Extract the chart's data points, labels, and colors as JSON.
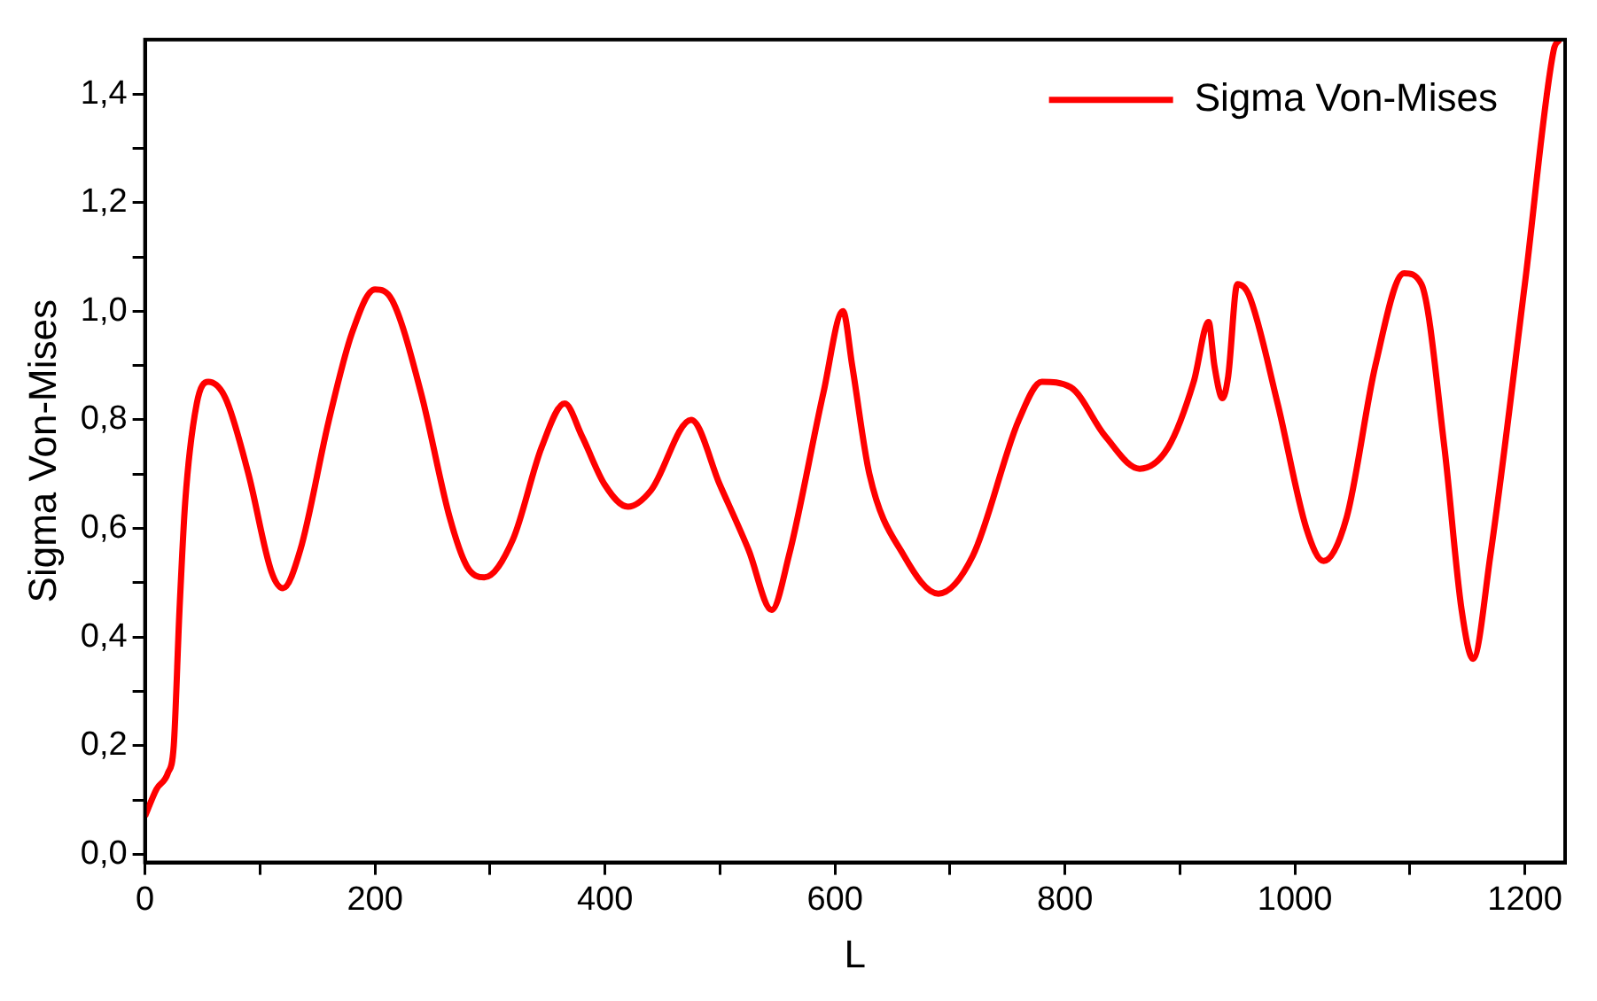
{
  "chart_data": {
    "type": "line",
    "xlabel": "L",
    "ylabel": "Sigma Von-Mises",
    "xlim": [
      0,
      1235
    ],
    "ylim": [
      -0.015,
      1.5
    ],
    "xticks": [
      0,
      {
        "value": 100,
        "label": null
      },
      200,
      {
        "value": 300,
        "label": null
      },
      400,
      {
        "value": 500,
        "label": null
      },
      600,
      {
        "value": 700,
        "label": null
      },
      800,
      {
        "value": 900,
        "label": null
      },
      1000,
      {
        "value": 1100,
        "label": null
      },
      1200
    ],
    "yticks": [
      {
        "value": 0,
        "label": "0,0"
      },
      {
        "value": 0.1,
        "label": null
      },
      {
        "value": 0.2,
        "label": "0,2"
      },
      {
        "value": 0.3,
        "label": null
      },
      {
        "value": 0.4,
        "label": "0,4"
      },
      {
        "value": 0.5,
        "label": null
      },
      {
        "value": 0.6,
        "label": "0,6"
      },
      {
        "value": 0.7,
        "label": null
      },
      {
        "value": 0.8,
        "label": "0,8"
      },
      {
        "value": 0.9,
        "label": null
      },
      {
        "value": 1.0,
        "label": "1,0"
      },
      {
        "value": 1.1,
        "label": null
      },
      {
        "value": 1.2,
        "label": "1,2"
      },
      {
        "value": 1.3,
        "label": null
      },
      {
        "value": 1.4,
        "label": "1,4"
      }
    ],
    "grid": false,
    "legend": "top right",
    "marker": "none",
    "line_style": "solid",
    "series": [
      {
        "name": "Sigma Von-Mises",
        "color": "#ff0000",
        "x": [
          0,
          10,
          20,
          25,
          30,
          35,
          45,
          55,
          70,
          90,
          110,
          120,
          135,
          160,
          180,
          200,
          215,
          240,
          265,
          280,
          295,
          320,
          345,
          365,
          380,
          400,
          420,
          440,
          475,
          500,
          525,
          545,
          560,
          590,
          607,
          615,
          630,
          660,
          690,
          720,
          760,
          780,
          805,
          835,
          865,
          890,
          912,
          925,
          930,
          937,
          942,
          950,
          960,
          985,
          1010,
          1025,
          1045,
          1070,
          1095,
          1110,
          1130,
          1145,
          1155,
          1170,
          1200,
          1225,
          1230
        ],
        "values": [
          0.07,
          0.12,
          0.15,
          0.2,
          0.45,
          0.65,
          0.83,
          0.87,
          0.84,
          0.7,
          0.52,
          0.49,
          0.56,
          0.8,
          0.96,
          1.04,
          1.02,
          0.85,
          0.62,
          0.53,
          0.51,
          0.58,
          0.75,
          0.83,
          0.77,
          0.68,
          0.64,
          0.67,
          0.8,
          0.68,
          0.56,
          0.45,
          0.55,
          0.85,
          1.0,
          0.9,
          0.7,
          0.55,
          0.48,
          0.55,
          0.8,
          0.87,
          0.86,
          0.77,
          0.71,
          0.75,
          0.87,
          0.98,
          0.9,
          0.84,
          0.88,
          1.05,
          1.03,
          0.83,
          0.6,
          0.54,
          0.62,
          0.9,
          1.07,
          1.05,
          0.75,
          0.45,
          0.36,
          0.55,
          1.05,
          1.48,
          1.5
        ]
      }
    ]
  }
}
